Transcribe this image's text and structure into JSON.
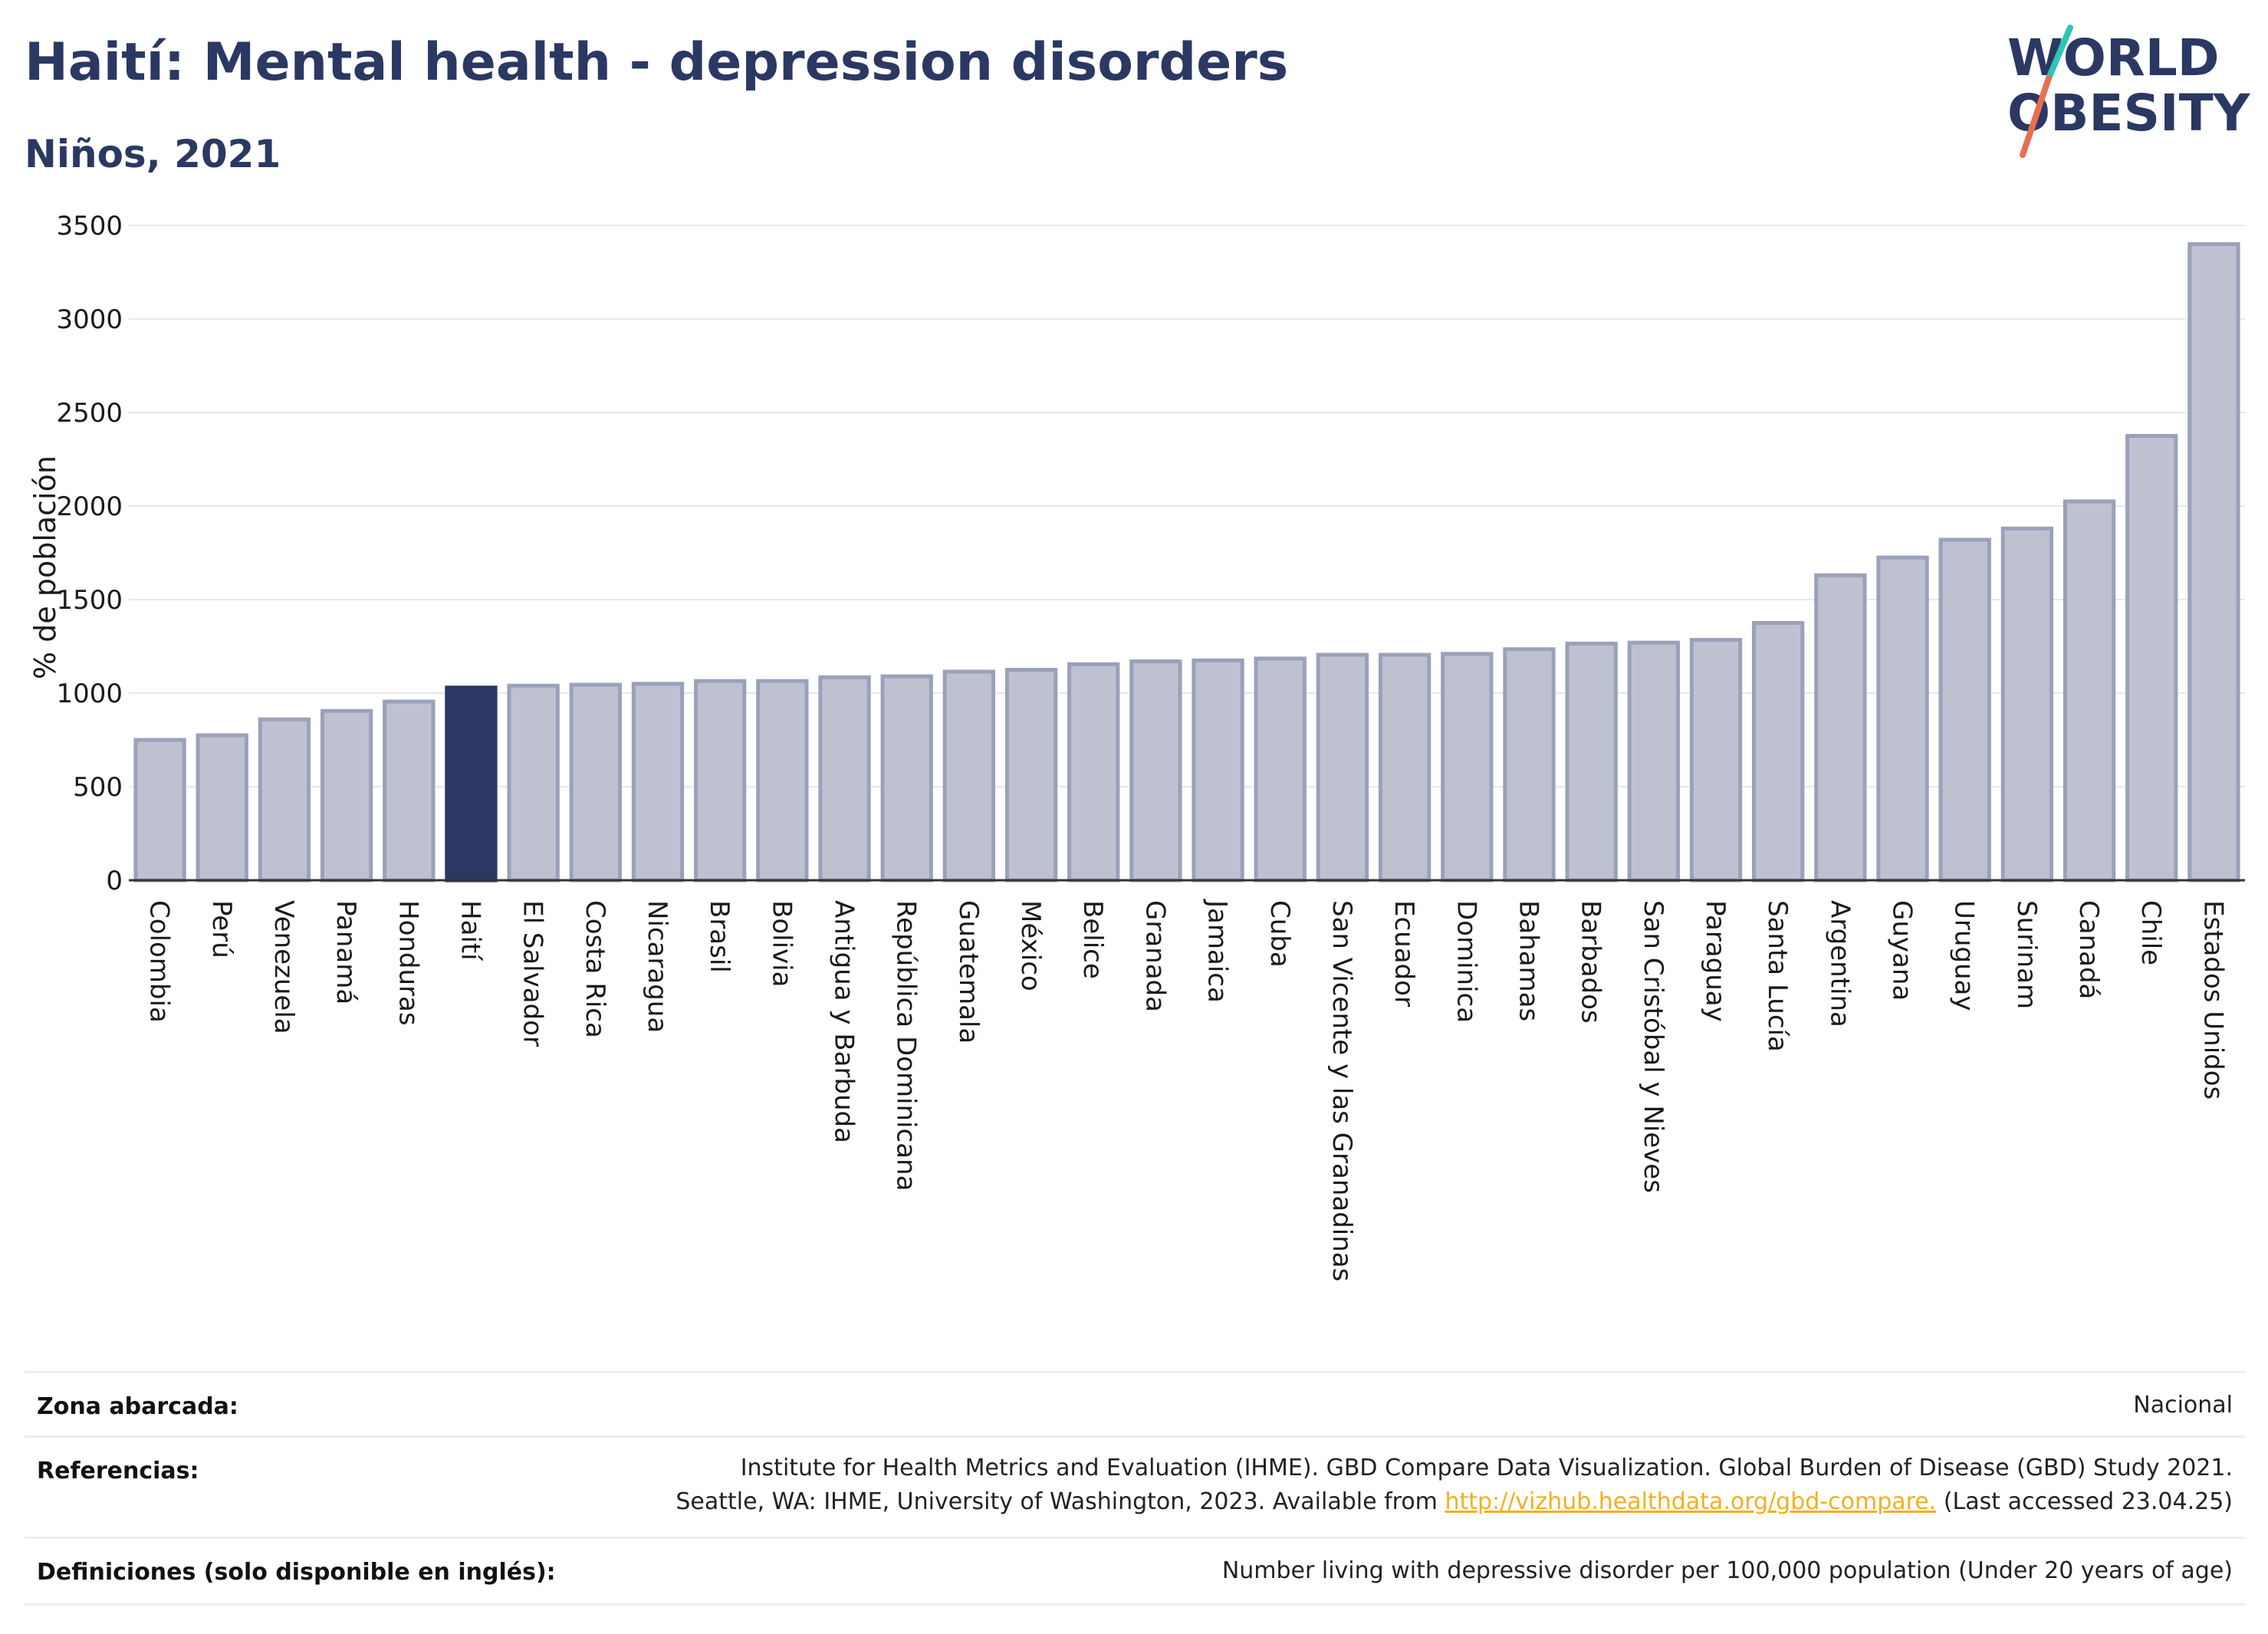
{
  "title": "Haití: Mental health - depression disorders",
  "subtitle": "Niños, 2021",
  "logo": {
    "line1": "WORLD",
    "line2": "OBESITY",
    "accent_teal": "#2ec4b6",
    "accent_coral": "#e76f51"
  },
  "colors": {
    "highlight": "#2b3863",
    "bar": "#bec2d0",
    "bar_stroke": "#9aa1ba",
    "grid": "#e6e8ef",
    "link": "#f2b01e"
  },
  "chart_data": {
    "type": "bar",
    "ylabel": "% de población",
    "ylim": [
      0,
      3500
    ],
    "yticks": [
      0,
      500,
      1000,
      1500,
      2000,
      2500,
      3000,
      3500
    ],
    "grid": true,
    "highlight": "Haití",
    "categories": [
      "Colombia",
      "Perú",
      "Venezuela",
      "Panamá",
      "Honduras",
      "Haití",
      "El Salvador",
      "Costa Rica",
      "Nicaragua",
      "Brasil",
      "Bolivia",
      "Antigua y Barbuda",
      "República Dominicana",
      "Guatemala",
      "México",
      "Belice",
      "Granada",
      "Jamaica",
      "Cuba",
      "San Vicente y las Granadinas",
      "Ecuador",
      "Dominica",
      "Bahamas",
      "Barbados",
      "San Cristóbal y Nieves",
      "Paraguay",
      "Santa Lucía",
      "Argentina",
      "Guyana",
      "Uruguay",
      "Surinam",
      "Canadá",
      "Chile",
      "Estados Unidos"
    ],
    "values": [
      750,
      775,
      860,
      905,
      955,
      1030,
      1040,
      1045,
      1050,
      1065,
      1065,
      1085,
      1090,
      1115,
      1125,
      1155,
      1170,
      1175,
      1185,
      1205,
      1205,
      1210,
      1235,
      1265,
      1270,
      1285,
      1375,
      1630,
      1725,
      1820,
      1880,
      2025,
      2375,
      3400
    ]
  },
  "meta": {
    "zona_key": "Zona abarcada:",
    "zona_val": "Nacional",
    "ref_key": "Referencias:",
    "ref_line1": "Institute for Health Metrics and Evaluation (IHME). GBD Compare Data Visualization. Global Burden of Disease (GBD) Study 2021.",
    "ref_line2_pre": "Seattle, WA: IHME, University of Washington, 2023. Available from ",
    "ref_link": "http://vizhub.healthdata.org/gbd-compare.",
    "ref_line2_post": " (Last accessed 23.04.25)",
    "def_key": "Definiciones (solo disponible en inglés):",
    "def_val": "Number living with depressive disorder per 100,000 population (Under 20 years of age)"
  }
}
